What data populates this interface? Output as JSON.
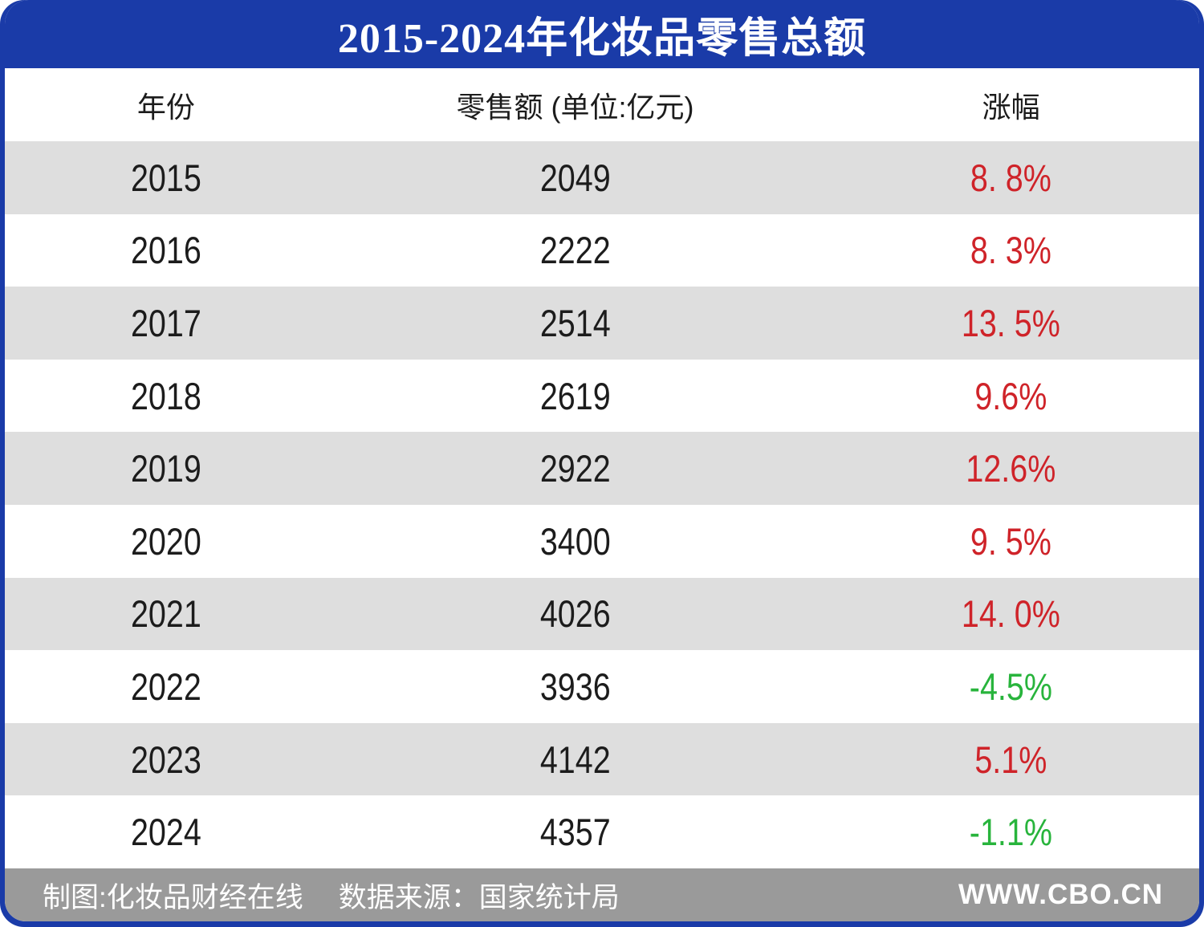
{
  "title": "2015-2024年化妆品零售总额",
  "table": {
    "columns": [
      "年份",
      "零售额 (单位:亿元)",
      "涨幅"
    ],
    "rows": [
      {
        "year": "2015",
        "value": "2049",
        "change": "8. 8%",
        "trend": "up"
      },
      {
        "year": "2016",
        "value": "2222",
        "change": "8. 3%",
        "trend": "up"
      },
      {
        "year": "2017",
        "value": "2514",
        "change": "13. 5%",
        "trend": "up"
      },
      {
        "year": "2018",
        "value": "2619",
        "change": "9.6%",
        "trend": "up"
      },
      {
        "year": "2019",
        "value": "2922",
        "change": "12.6%",
        "trend": "up"
      },
      {
        "year": "2020",
        "value": "3400",
        "change": "9. 5%",
        "trend": "up"
      },
      {
        "year": "2021",
        "value": "4026",
        "change": "14. 0%",
        "trend": "up"
      },
      {
        "year": "2022",
        "value": "3936",
        "change": "-4.5%",
        "trend": "down"
      },
      {
        "year": "2023",
        "value": "4142",
        "change": "5.1%",
        "trend": "up"
      },
      {
        "year": "2024",
        "value": "4357",
        "change": "-1.1%",
        "trend": "down"
      }
    ]
  },
  "footer": {
    "credit": "制图:化妆品财经在线",
    "source": "数据来源：国家统计局",
    "site": "WWW.CBO.CN"
  },
  "colors": {
    "accent_blue": "#1a3ba8",
    "row_gray": "#dedede",
    "footer_gray": "#9a9a9a",
    "up_red": "#cf2329",
    "down_green": "#28b43c"
  },
  "chart_data": {
    "type": "table",
    "title": "2015-2024年化妆品零售总额",
    "columns": [
      "年份",
      "零售额 (单位:亿元)",
      "涨幅"
    ],
    "years": [
      2015,
      2016,
      2017,
      2018,
      2019,
      2020,
      2021,
      2022,
      2023,
      2024
    ],
    "retail_values_yi_yuan": [
      2049,
      2222,
      2514,
      2619,
      2922,
      3400,
      4026,
      3936,
      4142,
      4357
    ],
    "growth_pct": [
      8.8,
      8.3,
      13.5,
      9.6,
      12.6,
      9.5,
      14.0,
      -4.5,
      5.1,
      -1.1
    ]
  }
}
